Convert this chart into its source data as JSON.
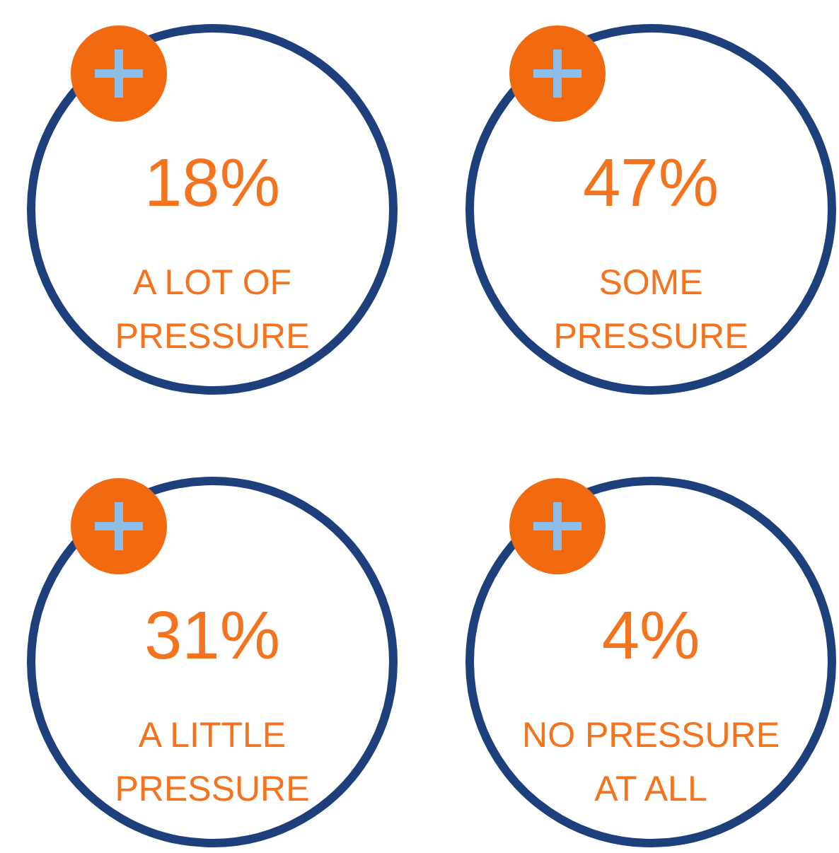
{
  "chart_data": {
    "type": "other",
    "categories": [
      "A LOT OF\nPRESSURE",
      "SOME\nPRESSURE",
      "A LITTLE\nPRESSURE",
      "NO PRESSURE\nAT ALL"
    ],
    "values": [
      18,
      47,
      31,
      4
    ],
    "value_labels": [
      "18%",
      "47%",
      "31%",
      "4%"
    ],
    "colors": [
      "#1d3f7c",
      "#1d3f7c",
      "#1d3f7c",
      "#1d3f7c"
    ]
  }
}
